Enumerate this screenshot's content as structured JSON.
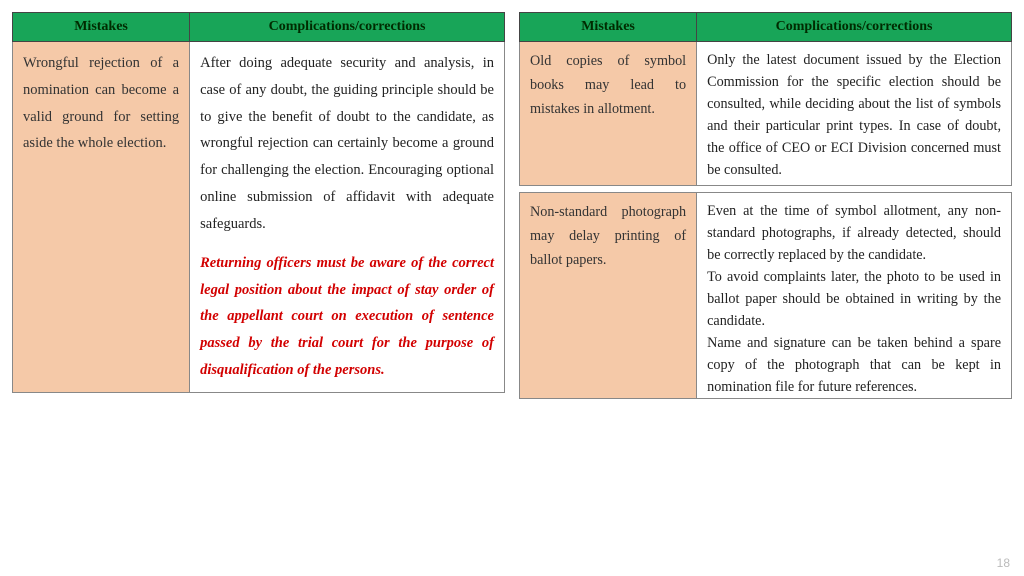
{
  "headers": {
    "mistakes": "Mistakes",
    "corrections": "Complications/corrections"
  },
  "left": {
    "row1": {
      "mistake": "Wrongful rejection of a nomination can become a valid ground for setting aside the whole election.",
      "correction_p1": "After doing adequate security and analysis, in case of any doubt, the guiding principle should be to give the benefit of doubt to the candidate, as wrongful rejection can certainly become a ground for challenging the election. Encouraging optional online submission of affidavit with adequate safeguards.",
      "correction_p2": "Returning officers must be aware of the correct legal position about the impact of stay order of the appellant court on execution of sentence passed by the trial court for the purpose of disqualification of the persons."
    }
  },
  "right": {
    "row1": {
      "mistake": "Old copies of symbol books may lead to mistakes in allotment.",
      "correction": "Only the latest document issued by the Election Commission for the specific election should be consulted, while deciding about the list of symbols and their particular print types. In case of doubt, the office of CEO or ECI Division concerned must be consulted."
    },
    "row2": {
      "mistake": "Non-standard photograph may delay printing of ballot papers.",
      "correction_p1": "Even at the time of symbol allotment, any non- standard photographs, if already detected, should be correctly replaced by the candidate.",
      "correction_p2": "To avoid complaints later, the photo to be used in ballot paper should be obtained in writing by the candidate.",
      "correction_p3": "Name and signature can be taken behind a spare copy of the photograph that can be kept in nomination file for future references."
    }
  },
  "page_number": "18",
  "colors": {
    "header_bg": "#18a558",
    "mistake_bg": "#f5c9a8",
    "emphasis_text": "#d20000"
  }
}
